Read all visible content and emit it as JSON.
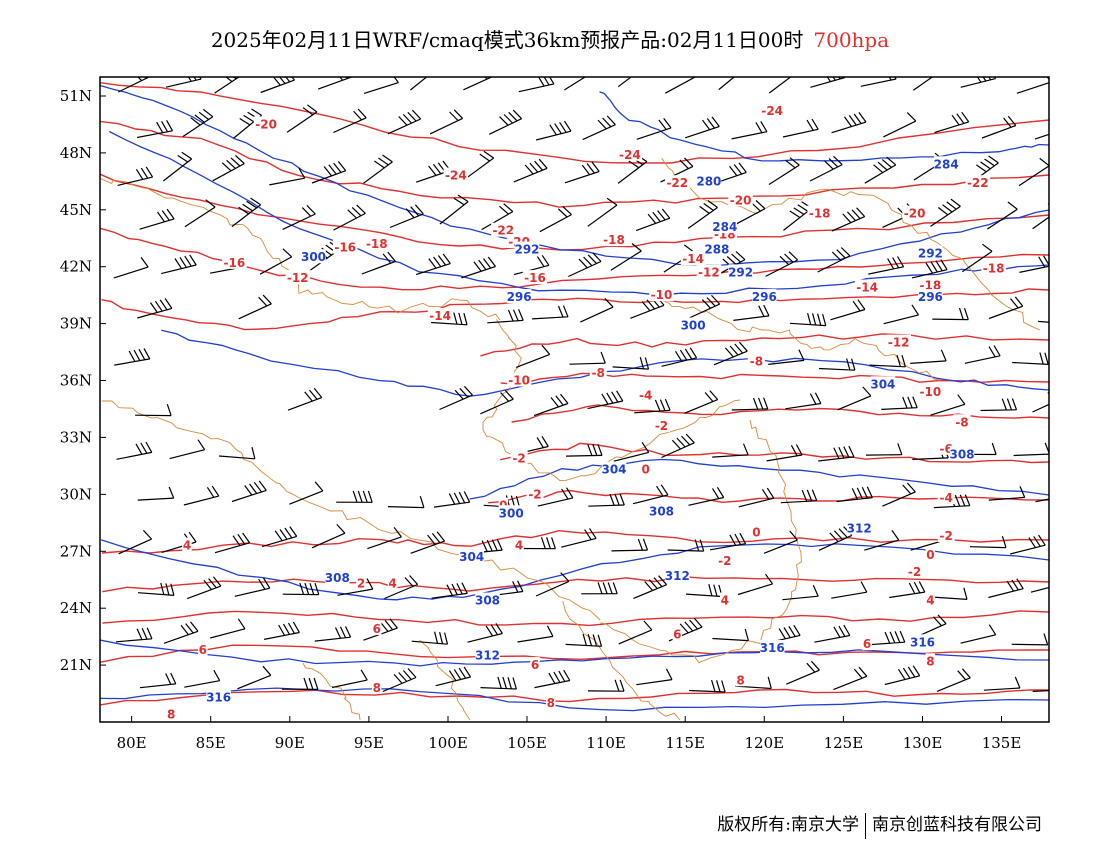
{
  "title": {
    "main": "2025年02月11日WRF/cmaq模式36km预报产品:02月11日00时",
    "level": "700hpa"
  },
  "colors": {
    "temperature_contour": "#e03030",
    "height_contour": "#2040d0",
    "boundary": "#d88a3a",
    "wind_barb": "#000000"
  },
  "axes": {
    "lat_labels": [
      "51N",
      "48N",
      "45N",
      "42N",
      "39N",
      "36N",
      "33N",
      "30N",
      "27N",
      "24N",
      "21N"
    ],
    "lat_values": [
      51,
      48,
      45,
      42,
      39,
      36,
      33,
      30,
      27,
      24,
      21
    ],
    "lon_labels": [
      "80E",
      "85E",
      "90E",
      "95E",
      "100E",
      "105E",
      "110E",
      "115E",
      "120E",
      "125E",
      "130E",
      "135E"
    ],
    "lon_values": [
      80,
      85,
      90,
      95,
      100,
      105,
      110,
      115,
      120,
      125,
      130,
      135
    ],
    "lon_range": [
      78,
      138
    ],
    "lat_range": [
      18,
      52
    ]
  },
  "temperature_labels": [
    {
      "text": "-20",
      "lon": 88.5,
      "lat": 49.5
    },
    {
      "text": "-24",
      "lon": 120.5,
      "lat": 50.2
    },
    {
      "text": "-24",
      "lon": 111.5,
      "lat": 47.9
    },
    {
      "text": "-24",
      "lon": 100.5,
      "lat": 46.8
    },
    {
      "text": "-22",
      "lon": 114.5,
      "lat": 46.4
    },
    {
      "text": "-22",
      "lon": 133.5,
      "lat": 46.4
    },
    {
      "text": "-20",
      "lon": 118.5,
      "lat": 45.5
    },
    {
      "text": "-20",
      "lon": 129.5,
      "lat": 44.8
    },
    {
      "text": "-18",
      "lon": 123.5,
      "lat": 44.8
    },
    {
      "text": "-22",
      "lon": 103.5,
      "lat": 43.9
    },
    {
      "text": "-20",
      "lon": 104.5,
      "lat": 43.3
    },
    {
      "text": "-18",
      "lon": 110.5,
      "lat": 43.4
    },
    {
      "text": "-16",
      "lon": 93.5,
      "lat": 43.0
    },
    {
      "text": "-18",
      "lon": 95.5,
      "lat": 43.2
    },
    {
      "text": "-18",
      "lon": 117.5,
      "lat": 43.7
    },
    {
      "text": "-18",
      "lon": 134.5,
      "lat": 41.9
    },
    {
      "text": "-16",
      "lon": 86.5,
      "lat": 42.2
    },
    {
      "text": "-14",
      "lon": 115.5,
      "lat": 42.4
    },
    {
      "text": "-12",
      "lon": 116.5,
      "lat": 41.7
    },
    {
      "text": "-16",
      "lon": 105.5,
      "lat": 41.4
    },
    {
      "text": "-12",
      "lon": 90.5,
      "lat": 41.4
    },
    {
      "text": "-14",
      "lon": 126.5,
      "lat": 40.9
    },
    {
      "text": "-18",
      "lon": 130.5,
      "lat": 41.0
    },
    {
      "text": "-10",
      "lon": 113.5,
      "lat": 40.5
    },
    {
      "text": "-14",
      "lon": 99.5,
      "lat": 39.4
    },
    {
      "text": "-12",
      "lon": 128.5,
      "lat": 38.0
    },
    {
      "text": "-8",
      "lon": 119.5,
      "lat": 37.0
    },
    {
      "text": "-8",
      "lon": 109.5,
      "lat": 36.4
    },
    {
      "text": "-10",
      "lon": 104.5,
      "lat": 36.0
    },
    {
      "text": "-10",
      "lon": 130.5,
      "lat": 35.4
    },
    {
      "text": "-4",
      "lon": 112.5,
      "lat": 35.2
    },
    {
      "text": "-8",
      "lon": 132.5,
      "lat": 33.8
    },
    {
      "text": "-2",
      "lon": 113.5,
      "lat": 33.6
    },
    {
      "text": "-6",
      "lon": 131.5,
      "lat": 32.4
    },
    {
      "text": "-2",
      "lon": 104.5,
      "lat": 31.9
    },
    {
      "text": "0",
      "lon": 112.5,
      "lat": 31.3
    },
    {
      "text": "-2",
      "lon": 105.5,
      "lat": 30.0
    },
    {
      "text": "0",
      "lon": 103.5,
      "lat": 29.4
    },
    {
      "text": "-4",
      "lon": 131.5,
      "lat": 29.8
    },
    {
      "text": "0",
      "lon": 119.5,
      "lat": 28.0
    },
    {
      "text": "-2",
      "lon": 131.5,
      "lat": 27.8
    },
    {
      "text": "0",
      "lon": 130.5,
      "lat": 26.8
    },
    {
      "text": "4",
      "lon": 83.5,
      "lat": 27.3
    },
    {
      "text": "4",
      "lon": 104.5,
      "lat": 27.3
    },
    {
      "text": "-2",
      "lon": 117.5,
      "lat": 26.5
    },
    {
      "text": "-2",
      "lon": 129.5,
      "lat": 25.9
    },
    {
      "text": "2",
      "lon": 94.5,
      "lat": 25.3
    },
    {
      "text": "4",
      "lon": 96.5,
      "lat": 25.3
    },
    {
      "text": "4",
      "lon": 117.5,
      "lat": 24.4
    },
    {
      "text": "4",
      "lon": 130.5,
      "lat": 24.4
    },
    {
      "text": "6",
      "lon": 95.5,
      "lat": 22.9
    },
    {
      "text": "6",
      "lon": 84.5,
      "lat": 21.8
    },
    {
      "text": "6",
      "lon": 114.5,
      "lat": 22.6
    },
    {
      "text": "6",
      "lon": 126.5,
      "lat": 22.1
    },
    {
      "text": "6",
      "lon": 105.5,
      "lat": 21.0
    },
    {
      "text": "8",
      "lon": 95.5,
      "lat": 19.8
    },
    {
      "text": "8",
      "lon": 106.5,
      "lat": 19.0
    },
    {
      "text": "8",
      "lon": 82.5,
      "lat": 18.4
    },
    {
      "text": "8",
      "lon": 130.5,
      "lat": 21.2
    },
    {
      "text": "8",
      "lon": 118.5,
      "lat": 20.2
    }
  ],
  "height_labels": [
    {
      "text": "284",
      "lon": 131.5,
      "lat": 47.4
    },
    {
      "text": "280",
      "lon": 116.5,
      "lat": 46.5
    },
    {
      "text": "284",
      "lon": 117.5,
      "lat": 44.1
    },
    {
      "text": "288",
      "lon": 117.0,
      "lat": 42.9
    },
    {
      "text": "292",
      "lon": 118.5,
      "lat": 41.7
    },
    {
      "text": "292",
      "lon": 130.5,
      "lat": 42.7
    },
    {
      "text": "292",
      "lon": 105.0,
      "lat": 42.9
    },
    {
      "text": "300",
      "lon": 91.5,
      "lat": 42.5
    },
    {
      "text": "296",
      "lon": 104.5,
      "lat": 40.4
    },
    {
      "text": "296",
      "lon": 120.0,
      "lat": 40.4
    },
    {
      "text": "296",
      "lon": 130.5,
      "lat": 40.4
    },
    {
      "text": "300",
      "lon": 115.5,
      "lat": 38.9
    },
    {
      "text": "304",
      "lon": 127.5,
      "lat": 35.8
    },
    {
      "text": "308",
      "lon": 132.5,
      "lat": 32.1
    },
    {
      "text": "304",
      "lon": 110.5,
      "lat": 31.3
    },
    {
      "text": "308",
      "lon": 113.5,
      "lat": 29.1
    },
    {
      "text": "300",
      "lon": 104.0,
      "lat": 29.0
    },
    {
      "text": "312",
      "lon": 126.0,
      "lat": 28.2
    },
    {
      "text": "304",
      "lon": 101.5,
      "lat": 26.7
    },
    {
      "text": "312",
      "lon": 114.5,
      "lat": 25.7
    },
    {
      "text": "308",
      "lon": 93.0,
      "lat": 25.6
    },
    {
      "text": "308",
      "lon": 102.5,
      "lat": 24.4
    },
    {
      "text": "316",
      "lon": 130.0,
      "lat": 22.2
    },
    {
      "text": "316",
      "lon": 120.5,
      "lat": 21.9
    },
    {
      "text": "312",
      "lon": 102.5,
      "lat": 21.5
    },
    {
      "text": "316",
      "lon": 85.5,
      "lat": 19.3
    }
  ],
  "footer": {
    "left": "版权所有:南京大学",
    "right": "南京创蓝科技有限公司"
  }
}
